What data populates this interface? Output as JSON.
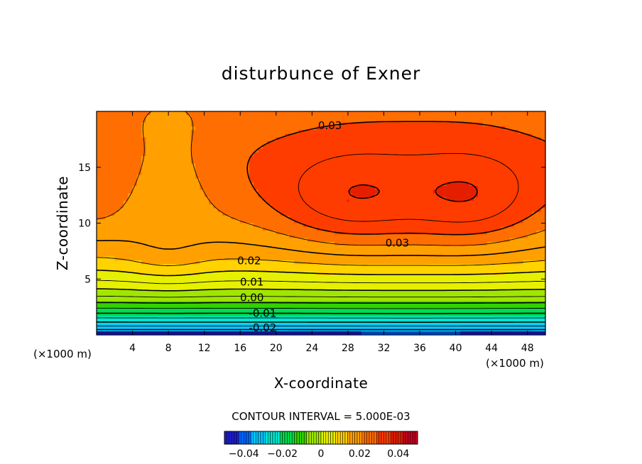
{
  "chart_data": {
    "type": "heatmap",
    "title": "disturbunce of Exner",
    "xlabel": "X-coordinate",
    "ylabel": "Z-coordinate",
    "x_unit_left": "(×1000 m)",
    "x_unit_right": "(×1000 m)",
    "xlim": [
      0,
      50
    ],
    "ylim": [
      0,
      20
    ],
    "x_ticks": [
      4,
      8,
      12,
      16,
      20,
      24,
      28,
      32,
      36,
      40,
      44,
      48
    ],
    "y_ticks": [
      5,
      10,
      15
    ],
    "contour_interval_text": "CONTOUR INTERVAL = 5.000E-03",
    "contour_interval": 0.005,
    "contour_labels": [
      {
        "text": "0.03",
        "x": 26,
        "z": 18.7
      },
      {
        "text": "0.03",
        "x": 33.5,
        "z": 8.2
      },
      {
        "text": "0.02",
        "x": 17,
        "z": 6.6
      },
      {
        "text": "0.01",
        "x": 17.3,
        "z": 4.7
      },
      {
        "text": "0.00",
        "x": 17.3,
        "z": 3.3
      },
      {
        "text": "-0.01",
        "x": 18.5,
        "z": 1.9
      },
      {
        "text": "-0.02",
        "x": 18.5,
        "z": 0.6
      }
    ],
    "value_range": [
      -0.05,
      0.05
    ],
    "colorbar_ticks": [
      {
        "value": -0.04,
        "label": "−0.04"
      },
      {
        "value": -0.02,
        "label": "−0.02"
      },
      {
        "value": 0,
        "label": "0"
      },
      {
        "value": 0.02,
        "label": "0.02"
      },
      {
        "value": 0.04,
        "label": "0.04"
      }
    ],
    "field_max": {
      "value": 0.037,
      "x": 28,
      "z": 12
    },
    "colormap": [
      "#1e1ecd",
      "#0066ff",
      "#00c8ff",
      "#00e6d2",
      "#00dc50",
      "#32d200",
      "#a0e600",
      "#e6f000",
      "#ffd200",
      "#ffa000",
      "#ff6e00",
      "#ff3c00",
      "#e61e00",
      "#c8001e"
    ],
    "grid": false,
    "legend": "colorbar-bottom"
  }
}
